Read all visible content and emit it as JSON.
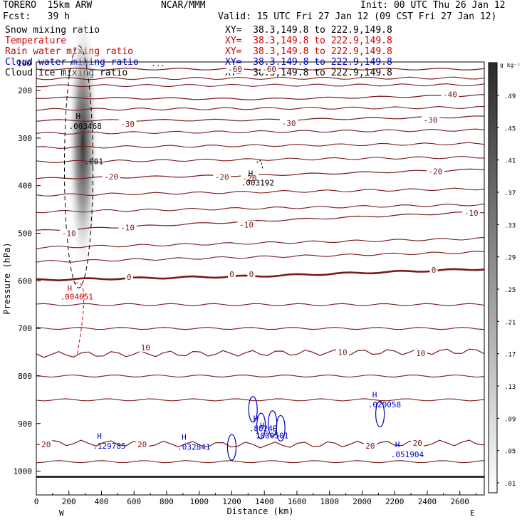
{
  "header": {
    "model_left": "TORERO  15km ARW",
    "center": "NCAR/MMM",
    "init": "Init: 00 UTC Thu 26 Jan 12",
    "fcst": "Fcst:   39 h",
    "valid": "Valid: 15 UTC Fri 27 Jan 12 (09 CST Fri 27 Jan 12)"
  },
  "fields": [
    {
      "name": "Snow mixing ratio",
      "xy": "XY=  38.3,149.8 to 222.9,149.8",
      "color": "#000000"
    },
    {
      "name": "Temperature",
      "xy": "XY=  38.3,149.8 to 222.9,149.8",
      "color": "#cc0000"
    },
    {
      "name": "Rain water mixing ratio",
      "xy": "XY=  38.3,149.8 to 222.9,149.8",
      "color": "#cc0000"
    },
    {
      "name": "Cloud water mixing ratio",
      "xy": "XY=  38.3,149.8 to 222.9,149.8",
      "color": "#0000cc"
    },
    {
      "name": "Cloud ice mixing ratio",
      "xy": "XY=  38.3,149.8 to 222.9,149.8",
      "color": "#000000"
    }
  ],
  "overprint": {
    "text": "100",
    "dots": "..."
  },
  "colorbar": {
    "unit": "g kg⁻¹",
    "labels": [
      ".49",
      ".45",
      ".41",
      ".37",
      ".33",
      ".29",
      ".25",
      ".21",
      ".17",
      ".13",
      ".09",
      ".05",
      ".01"
    ]
  },
  "end_labels": {
    "west": "W",
    "east": "E"
  },
  "chart_data": {
    "type": "contour",
    "xlabel": "Distance (km)",
    "ylabel": "Pressure (hPa)",
    "xlim": [
      0,
      2750
    ],
    "ylim": [
      1050,
      140
    ],
    "x_ticks": [
      0,
      200,
      400,
      600,
      800,
      1000,
      1200,
      1400,
      1600,
      1800,
      2000,
      2200,
      2400,
      2600
    ],
    "y_ticks": [
      200,
      300,
      400,
      500,
      600,
      700,
      800,
      900,
      1000
    ],
    "temperature_contours": [
      {
        "label": "-60",
        "p": [
          155,
          155,
          155
        ]
      },
      {
        "label": "-40",
        "p": [
          215,
          218,
          210
        ]
      },
      {
        "label": "-30",
        "p": [
          263,
          262,
          255
        ]
      },
      {
        "label": "-20",
        "p": [
          385,
          378,
          366
        ]
      },
      {
        "label": "-10",
        "p": [
          495,
          474,
          455
        ]
      },
      {
        "label": "0",
        "p": [
          598,
          590,
          575
        ]
      },
      {
        "label": "10",
        "p": [
          755,
          752,
          748
        ]
      },
      {
        "label": "20",
        "p": [
          940,
          945,
          940
        ]
      }
    ],
    "temperature_labels": [
      {
        "text": "-60",
        "x": 1220,
        "p": 155
      },
      {
        "text": "-60",
        "x": 1430,
        "p": 155
      },
      {
        "text": "-40",
        "x": 2540,
        "p": 208
      },
      {
        "text": "-30",
        "x": 560,
        "p": 270
      },
      {
        "text": "-30",
        "x": 1550,
        "p": 269
      },
      {
        "text": "-30",
        "x": 2420,
        "p": 262
      },
      {
        "text": "-20",
        "x": 460,
        "p": 381
      },
      {
        "text": "-20",
        "x": 1140,
        "p": 382
      },
      {
        "text": "-20",
        "x": 1310,
        "p": 384
      },
      {
        "text": "-20",
        "x": 2450,
        "p": 370
      },
      {
        "text": "-10",
        "x": 200,
        "p": 500
      },
      {
        "text": "-10",
        "x": 560,
        "p": 488
      },
      {
        "text": "-10",
        "x": 1290,
        "p": 482
      },
      {
        "text": "-10",
        "x": 2670,
        "p": 457
      },
      {
        "text": "0",
        "x": 570,
        "p": 592
      },
      {
        "text": "0",
        "x": 1200,
        "p": 586
      },
      {
        "text": "0",
        "x": 1320,
        "p": 586
      },
      {
        "text": "0",
        "x": 2440,
        "p": 577
      },
      {
        "text": "10",
        "x": 670,
        "p": 740
      },
      {
        "text": "10",
        "x": 1880,
        "p": 750
      },
      {
        "text": "10",
        "x": 2360,
        "p": 752
      },
      {
        "text": "20",
        "x": 60,
        "p": 944
      },
      {
        "text": "20",
        "x": 650,
        "p": 944
      },
      {
        "text": "20",
        "x": 2050,
        "p": 947
      },
      {
        "text": "20",
        "x": 2340,
        "p": 941
      }
    ],
    "snow_max": {
      "label": "H",
      "value": ".003468",
      "x": 260,
      "p": 278
    },
    "snow_contour_label": {
      "value": ".001",
      "x": 330,
      "p": 355
    },
    "snow_max_2": {
      "label": "H",
      "value": ".003192",
      "x": 1380,
      "p": 382
    },
    "rain_max": {
      "label": "H",
      "value": ".004651",
      "x": 260,
      "p": 636
    },
    "cloud_water_maxima": [
      {
        "label": "H",
        "value": ".129785",
        "x": 390,
        "p": 947
      },
      {
        "label": "H",
        "value": ".032841",
        "x": 910,
        "p": 949
      },
      {
        "label": "H",
        "value": ".8024B",
        "x": 1350,
        "p": 910
      },
      {
        "label": "H",
        "value": "1000501",
        "x": 1390,
        "p": 925
      },
      {
        "label": "H",
        "value": ".020058",
        "x": 2080,
        "p": 860
      },
      {
        "label": "H",
        "value": ".051904",
        "x": 2220,
        "p": 965
      }
    ],
    "snow_shading_max": 0.49
  }
}
